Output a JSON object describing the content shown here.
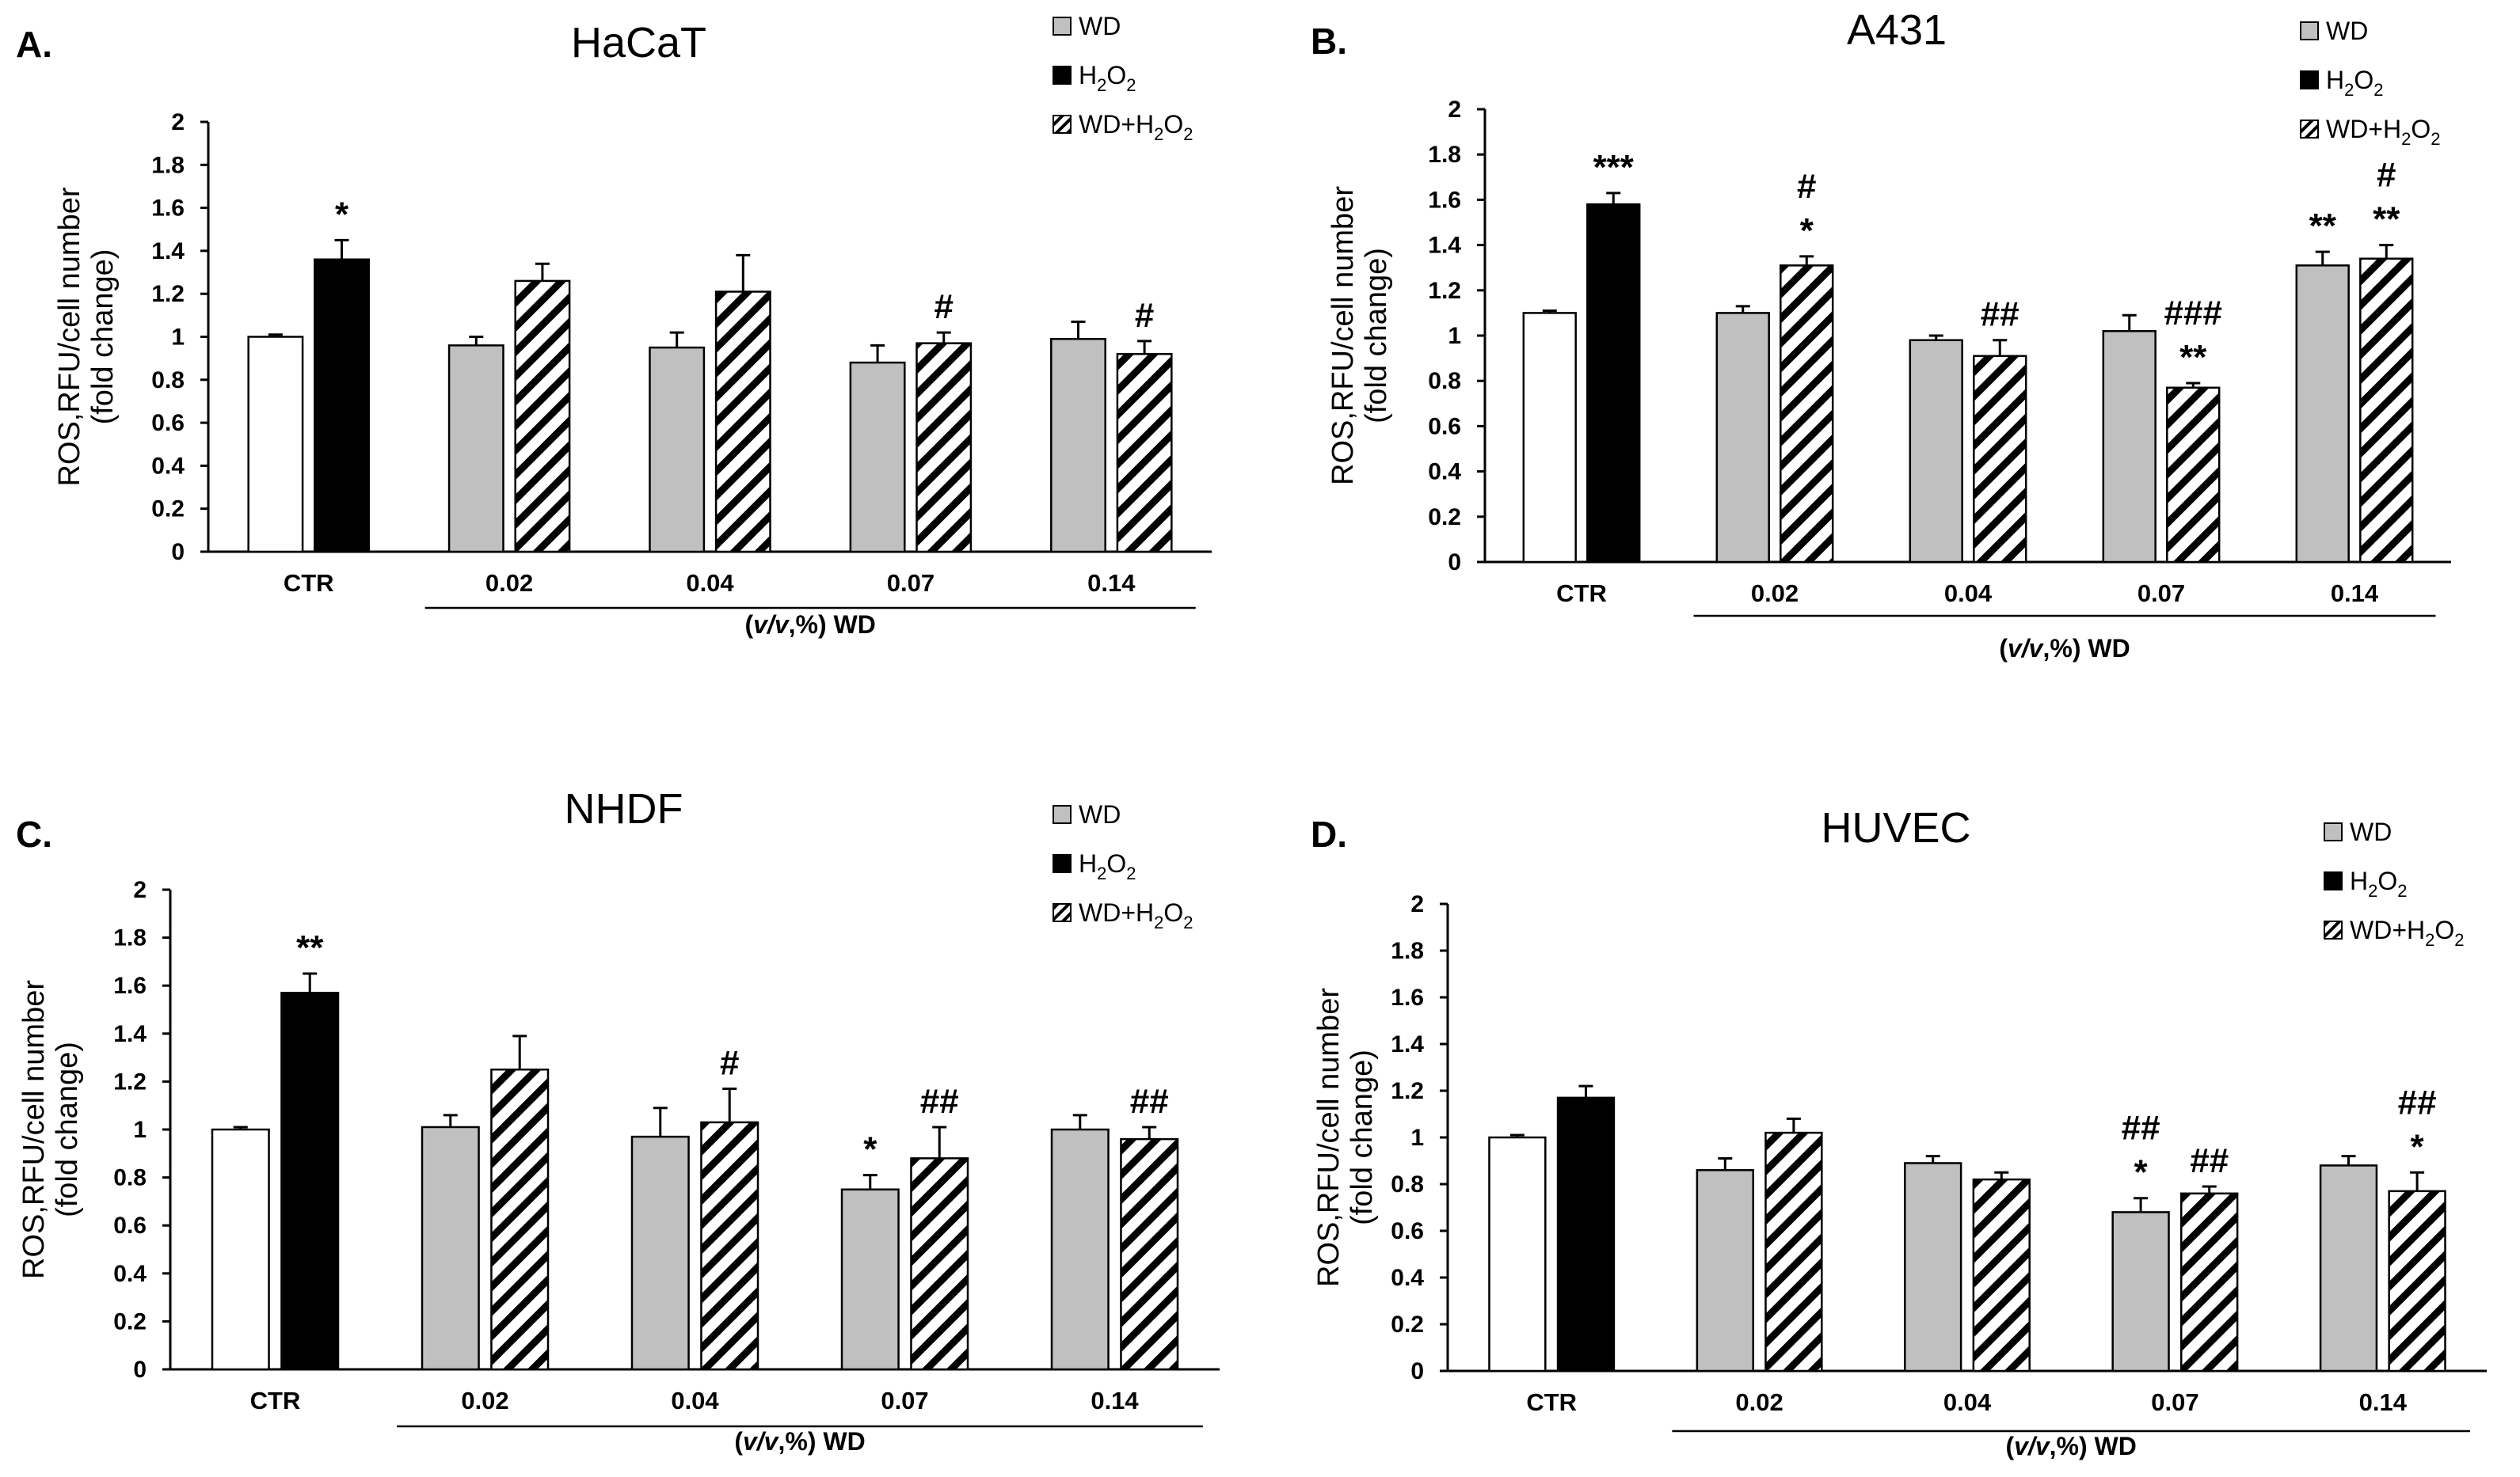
{
  "chart_data": [
    {
      "type": "bar",
      "panel": "A.",
      "title": "HaCaT",
      "ylabel": [
        "ROS,RFU/cell number",
        "(fold change)"
      ],
      "xlabel": {
        "prefix": "(",
        "italic": "v/v",
        "suffix": ",%) WD"
      },
      "ylim": [
        0,
        2
      ],
      "yticks": [
        "0",
        "0.2",
        "0.4",
        "0.6",
        "0.8",
        "1",
        "1.2",
        "1.4",
        "1.6",
        "1.8",
        "2"
      ],
      "legend": [
        "WD",
        "H2O2",
        "WD+H2O2"
      ],
      "groups": [
        {
          "label": "CTR",
          "bars": [
            {
              "series": "control",
              "value": 1.0,
              "error": 0.01,
              "sig": []
            },
            {
              "series": "H2O2",
              "value": 1.36,
              "error": 0.09,
              "sig": [
                "*"
              ]
            }
          ]
        },
        {
          "label": "0.02",
          "bars": [
            {
              "series": "WD",
              "value": 0.96,
              "error": 0.04,
              "sig": []
            },
            {
              "series": "WD+H2O2",
              "value": 1.26,
              "error": 0.08,
              "sig": []
            }
          ]
        },
        {
          "label": "0.04",
          "bars": [
            {
              "series": "WD",
              "value": 0.95,
              "error": 0.07,
              "sig": []
            },
            {
              "series": "WD+H2O2",
              "value": 1.21,
              "error": 0.17,
              "sig": []
            }
          ]
        },
        {
          "label": "0.07",
          "bars": [
            {
              "series": "WD",
              "value": 0.88,
              "error": 0.08,
              "sig": []
            },
            {
              "series": "WD+H2O2",
              "value": 0.97,
              "error": 0.05,
              "sig": [
                "#"
              ]
            }
          ]
        },
        {
          "label": "0.14",
          "bars": [
            {
              "series": "WD",
              "value": 0.99,
              "error": 0.08,
              "sig": []
            },
            {
              "series": "WD+H2O2",
              "value": 0.92,
              "error": 0.06,
              "sig": [
                "#"
              ]
            }
          ]
        }
      ]
    },
    {
      "type": "bar",
      "panel": "B.",
      "title": "A431",
      "ylabel": [
        "ROS,RFU/cell number",
        "(fold change)"
      ],
      "xlabel": {
        "prefix": "(",
        "italic": "v/v",
        "suffix": ",%) WD"
      },
      "ylim": [
        0,
        2
      ],
      "yticks": [
        "0",
        "0.2",
        "0.4",
        "0.6",
        "0.8",
        "1",
        "1.2",
        "1.4",
        "1.6",
        "1.8",
        "2"
      ],
      "legend": [
        "WD",
        "H2O2",
        "WD+H2O2"
      ],
      "groups": [
        {
          "label": "CTR",
          "bars": [
            {
              "series": "control",
              "value": 1.1,
              "error": 0.01,
              "sig": []
            },
            {
              "series": "H2O2",
              "value": 1.58,
              "error": 0.05,
              "sig": [
                "***"
              ]
            }
          ]
        },
        {
          "label": "0.02",
          "bars": [
            {
              "series": "WD",
              "value": 1.1,
              "error": 0.03,
              "sig": []
            },
            {
              "series": "WD+H2O2",
              "value": 1.31,
              "error": 0.04,
              "sig": [
                "*",
                "#"
              ]
            }
          ]
        },
        {
          "label": "0.04",
          "bars": [
            {
              "series": "WD",
              "value": 0.98,
              "error": 0.02,
              "sig": []
            },
            {
              "series": "WD+H2O2",
              "value": 0.91,
              "error": 0.07,
              "sig": [
                "##"
              ]
            }
          ]
        },
        {
          "label": "0.07",
          "bars": [
            {
              "series": "WD",
              "value": 1.02,
              "error": 0.07,
              "sig": []
            },
            {
              "series": "WD+H2O2",
              "value": 0.77,
              "error": 0.02,
              "sig": [
                "**",
                "###"
              ]
            }
          ]
        },
        {
          "label": "0.14",
          "bars": [
            {
              "series": "WD",
              "value": 1.31,
              "error": 0.06,
              "sig": [
                "**"
              ]
            },
            {
              "series": "WD+H2O2",
              "value": 1.34,
              "error": 0.06,
              "sig": [
                "**",
                "#"
              ]
            }
          ]
        }
      ]
    },
    {
      "type": "bar",
      "panel": "C.",
      "title": "NHDF",
      "ylabel": [
        "ROS,RFU/cell number",
        "(fold change)"
      ],
      "xlabel": {
        "prefix": "(",
        "italic": "v/v",
        "suffix": ",%) WD"
      },
      "ylim": [
        0,
        2
      ],
      "yticks": [
        "0",
        "0.2",
        "0.4",
        "0.6",
        "0.8",
        "1",
        "1.2",
        "1.4",
        "1.6",
        "1.8",
        "2"
      ],
      "legend": [
        "WD",
        "H2O2",
        "WD+H2O2"
      ],
      "groups": [
        {
          "label": "CTR",
          "bars": [
            {
              "series": "control",
              "value": 1.0,
              "error": 0.01,
              "sig": []
            },
            {
              "series": "H2O2",
              "value": 1.57,
              "error": 0.08,
              "sig": [
                "**"
              ]
            }
          ]
        },
        {
          "label": "0.02",
          "bars": [
            {
              "series": "WD",
              "value": 1.01,
              "error": 0.05,
              "sig": []
            },
            {
              "series": "WD+H2O2",
              "value": 1.25,
              "error": 0.14,
              "sig": []
            }
          ]
        },
        {
          "label": "0.04",
          "bars": [
            {
              "series": "WD",
              "value": 0.97,
              "error": 0.12,
              "sig": []
            },
            {
              "series": "WD+H2O2",
              "value": 1.03,
              "error": 0.14,
              "sig": [
                "#"
              ]
            }
          ]
        },
        {
          "label": "0.07",
          "bars": [
            {
              "series": "WD",
              "value": 0.75,
              "error": 0.06,
              "sig": [
                "*"
              ]
            },
            {
              "series": "WD+H2O2",
              "value": 0.88,
              "error": 0.13,
              "sig": [
                "##"
              ]
            }
          ]
        },
        {
          "label": "0.14",
          "bars": [
            {
              "series": "WD",
              "value": 1.0,
              "error": 0.06,
              "sig": []
            },
            {
              "series": "WD+H2O2",
              "value": 0.96,
              "error": 0.05,
              "sig": [
                "##"
              ]
            }
          ]
        }
      ]
    },
    {
      "type": "bar",
      "panel": "D.",
      "title": "HUVEC",
      "ylabel": [
        "ROS,RFU/cell number",
        "(fold change)"
      ],
      "xlabel": {
        "prefix": "(",
        "italic": "v/v",
        "suffix": ",%) WD"
      },
      "ylim": [
        0,
        2
      ],
      "yticks": [
        "0",
        "0.2",
        "0.4",
        "0.6",
        "0.8",
        "1",
        "1.2",
        "1.4",
        "1.6",
        "1.8",
        "2"
      ],
      "legend": [
        "WD",
        "H2O2",
        "WD+H2O2"
      ],
      "groups": [
        {
          "label": "CTR",
          "bars": [
            {
              "series": "control",
              "value": 1.0,
              "error": 0.01,
              "sig": []
            },
            {
              "series": "H2O2",
              "value": 1.17,
              "error": 0.05,
              "sig": []
            }
          ]
        },
        {
          "label": "0.02",
          "bars": [
            {
              "series": "WD",
              "value": 0.86,
              "error": 0.05,
              "sig": []
            },
            {
              "series": "WD+H2O2",
              "value": 1.02,
              "error": 0.06,
              "sig": []
            }
          ]
        },
        {
          "label": "0.04",
          "bars": [
            {
              "series": "WD",
              "value": 0.89,
              "error": 0.03,
              "sig": []
            },
            {
              "series": "WD+H2O2",
              "value": 0.82,
              "error": 0.03,
              "sig": []
            }
          ]
        },
        {
          "label": "0.07",
          "bars": [
            {
              "series": "WD",
              "value": 0.68,
              "error": 0.06,
              "sig": [
                "*",
                "##"
              ]
            },
            {
              "series": "WD+H2O2",
              "value": 0.76,
              "error": 0.03,
              "sig": [
                "##"
              ]
            }
          ]
        },
        {
          "label": "0.14",
          "bars": [
            {
              "series": "WD",
              "value": 0.88,
              "error": 0.04,
              "sig": []
            },
            {
              "series": "WD+H2O2",
              "value": 0.77,
              "error": 0.08,
              "sig": [
                "*",
                "##"
              ]
            }
          ]
        }
      ]
    }
  ],
  "colors": {
    "control": "#ffffff",
    "WD": "#c0c0c0",
    "H2O2": "#000000",
    "axis": "#000000",
    "stripe": "#000000"
  }
}
